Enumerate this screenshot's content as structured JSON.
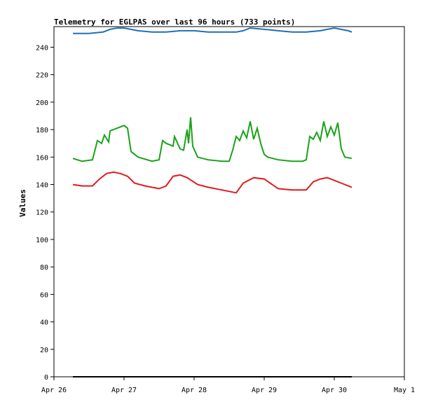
{
  "chart_data": {
    "type": "line",
    "title": "Telemetry for EGLPAS over last 96 hours (733 points)",
    "xlabel": "",
    "ylabel": "Values",
    "ylim": [
      0,
      255
    ],
    "yticks": [
      0,
      20,
      40,
      60,
      80,
      100,
      120,
      140,
      160,
      180,
      200,
      220,
      240
    ],
    "xticks": [
      "Apr 26",
      "Apr 27",
      "Apr 28",
      "Apr 29",
      "Apr 30",
      "May 1"
    ],
    "x_unit": "days since Apr 26 00:00",
    "xlim": [
      0,
      5
    ],
    "grid": false,
    "series": [
      {
        "color": "#1f6fb7",
        "x": [
          0.27,
          0.5,
          0.7,
          0.8,
          0.9,
          1.0,
          1.2,
          1.4,
          1.6,
          1.8,
          2.0,
          2.2,
          2.4,
          2.6,
          2.7,
          2.8,
          3.0,
          3.2,
          3.4,
          3.6,
          3.8,
          3.9,
          4.0,
          4.2,
          4.25
        ],
        "values": [
          250,
          250,
          251,
          253,
          254,
          254,
          252,
          251,
          251,
          252,
          252,
          251,
          251,
          251,
          252,
          254,
          253,
          252,
          251,
          251,
          252,
          253,
          254,
          252,
          251
        ]
      },
      {
        "color": "#19a319",
        "x": [
          0.27,
          0.4,
          0.55,
          0.62,
          0.68,
          0.72,
          0.78,
          0.8,
          0.9,
          1.0,
          1.05,
          1.1,
          1.2,
          1.4,
          1.5,
          1.55,
          1.6,
          1.7,
          1.72,
          1.8,
          1.85,
          1.9,
          1.92,
          1.95,
          1.98,
          2.05,
          2.2,
          2.4,
          2.5,
          2.55,
          2.6,
          2.65,
          2.7,
          2.75,
          2.8,
          2.85,
          2.9,
          2.95,
          3.0,
          3.05,
          3.2,
          3.4,
          3.55,
          3.6,
          3.65,
          3.7,
          3.75,
          3.8,
          3.85,
          3.9,
          3.95,
          4.0,
          4.05,
          4.1,
          4.15,
          4.25
        ],
        "values": [
          159,
          157,
          158,
          172,
          170,
          176,
          171,
          179,
          181,
          183,
          181,
          164,
          160,
          157,
          158,
          172,
          170,
          168,
          175,
          166,
          165,
          180,
          170,
          189,
          168,
          160,
          158,
          157,
          157,
          165,
          175,
          172,
          179,
          174,
          186,
          173,
          181,
          170,
          162,
          160,
          158,
          157,
          157,
          158,
          175,
          173,
          178,
          172,
          186,
          175,
          182,
          176,
          185,
          166,
          160,
          159
        ]
      },
      {
        "color": "#e01b1b",
        "x": [
          0.27,
          0.4,
          0.55,
          0.65,
          0.75,
          0.85,
          0.95,
          1.05,
          1.15,
          1.3,
          1.5,
          1.6,
          1.7,
          1.8,
          1.9,
          2.05,
          2.2,
          2.4,
          2.5,
          2.6,
          2.7,
          2.85,
          3.0,
          3.2,
          3.4,
          3.6,
          3.7,
          3.8,
          3.9,
          4.0,
          4.1,
          4.25
        ],
        "values": [
          140,
          139,
          139,
          144,
          148,
          149,
          148,
          146,
          141,
          139,
          137,
          139,
          146,
          147,
          145,
          140,
          138,
          136,
          135,
          134,
          141,
          145,
          144,
          137,
          136,
          136,
          142,
          144,
          145,
          143,
          141,
          138
        ]
      },
      {
        "color": "#000000",
        "x": [
          0.27,
          4.25
        ],
        "values": [
          0,
          0
        ]
      }
    ]
  }
}
